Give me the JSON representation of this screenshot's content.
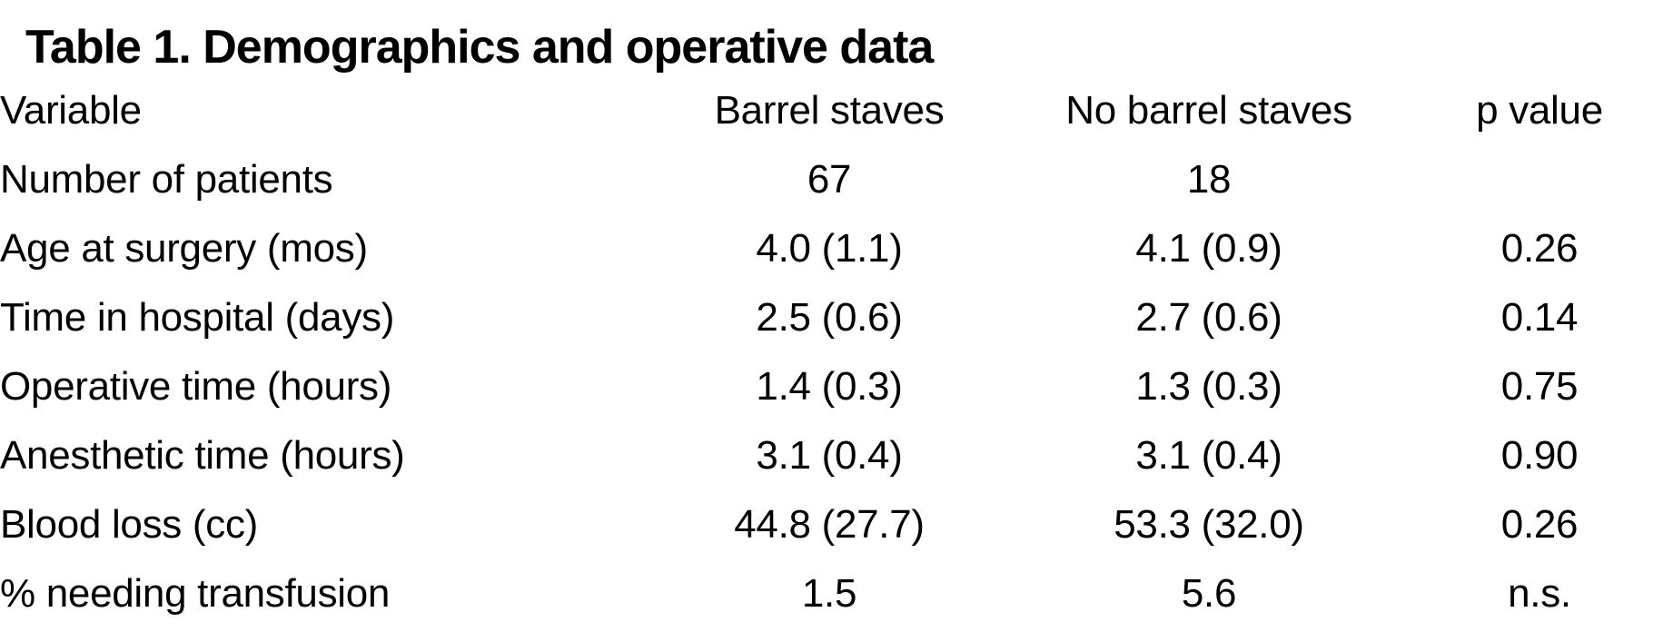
{
  "title": "Table 1. Demographics and operative data",
  "table": {
    "columns": {
      "variable": "Variable",
      "barrel_staves": "Barrel staves",
      "no_barrel_staves": "No barrel staves",
      "p_value": "p value"
    },
    "rows": [
      {
        "variable": "Number of patients",
        "barrel_staves": "67",
        "no_barrel_staves": "18",
        "p_value": ""
      },
      {
        "variable": "Age at surgery (mos)",
        "barrel_staves": "4.0 (1.1)",
        "no_barrel_staves": "4.1 (0.9)",
        "p_value": "0.26"
      },
      {
        "variable": "Time in hospital (days)",
        "barrel_staves": "2.5 (0.6)",
        "no_barrel_staves": "2.7 (0.6)",
        "p_value": "0.14"
      },
      {
        "variable": "Operative time (hours)",
        "barrel_staves": "1.4 (0.3)",
        "no_barrel_staves": "1.3 (0.3)",
        "p_value": "0.75"
      },
      {
        "variable": "Anesthetic time (hours)",
        "barrel_staves": "3.1 (0.4)",
        "no_barrel_staves": "3.1 (0.4)",
        "p_value": "0.90"
      },
      {
        "variable": "Blood loss (cc)",
        "barrel_staves": "44.8 (27.7)",
        "no_barrel_staves": "53.3 (32.0)",
        "p_value": "0.26"
      },
      {
        "variable": "% needing transfusion",
        "barrel_staves": "1.5",
        "no_barrel_staves": "5.6",
        "p_value": "n.s."
      }
    ]
  },
  "colors": {
    "text": "#000000",
    "background": "#ffffff"
  }
}
